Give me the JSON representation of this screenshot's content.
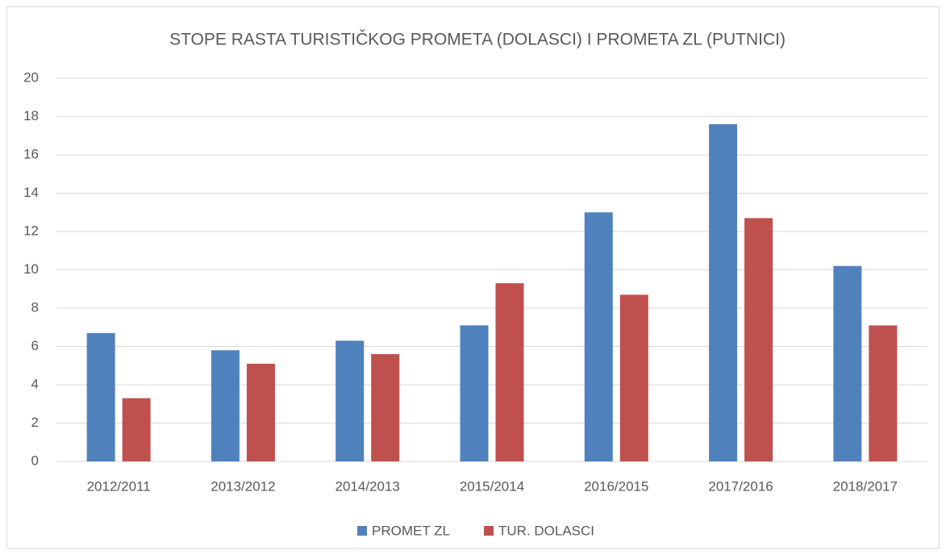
{
  "chart_data": {
    "type": "bar",
    "title": "STOPE RASTA TURISTIČKOG PROMETA (DOLASCI) I PROMETA ZL (PUTNICI)",
    "categories": [
      "2012/2011",
      "2013/2012",
      "2014/2013",
      "2015/2014",
      "2016/2015",
      "2017/2016",
      "2018/2017"
    ],
    "series": [
      {
        "name": "PROMET ZL",
        "color": "#4f81bd",
        "values": [
          6.7,
          5.8,
          6.3,
          7.1,
          13.0,
          17.6,
          10.2
        ]
      },
      {
        "name": "TUR. DOLASCI",
        "color": "#c0504d",
        "values": [
          3.3,
          5.1,
          5.6,
          9.3,
          8.7,
          12.7,
          7.1
        ]
      }
    ],
    "ylim": [
      0,
      20
    ],
    "yticks": [
      0,
      2,
      4,
      6,
      8,
      10,
      12,
      14,
      16,
      18,
      20
    ],
    "grid": true,
    "legend": "bottom"
  }
}
